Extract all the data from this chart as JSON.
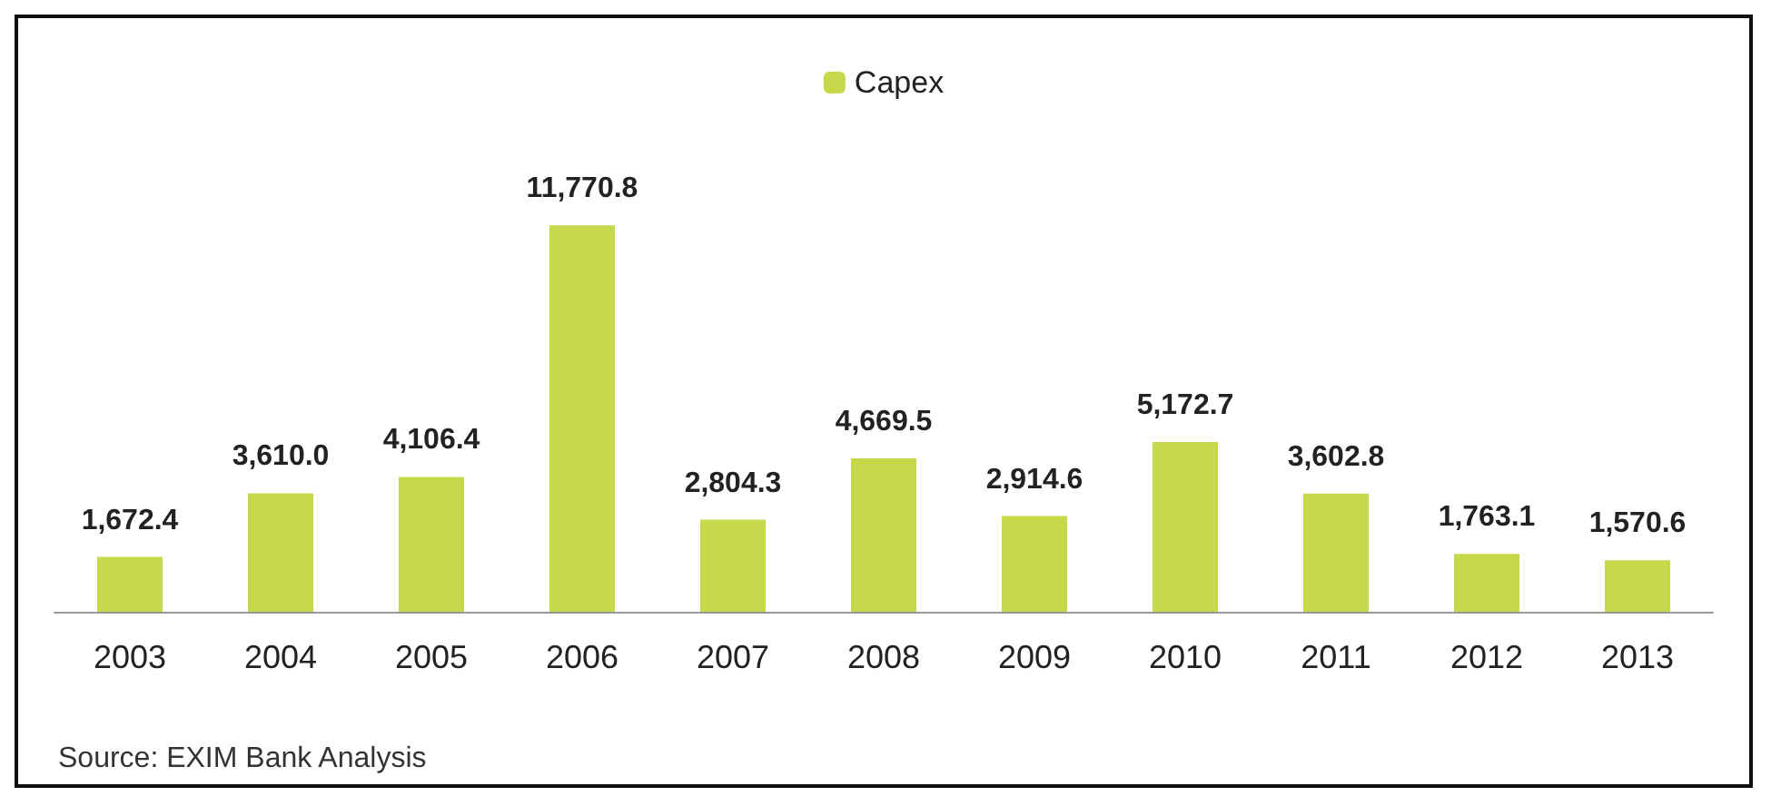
{
  "chart_data": {
    "type": "bar",
    "categories": [
      "2003",
      "2004",
      "2005",
      "2006",
      "2007",
      "2008",
      "2009",
      "2010",
      "2011",
      "2012",
      "2013"
    ],
    "series": [
      {
        "name": "Capex",
        "color": "#c5d94b",
        "values": [
          1672.4,
          3610.0,
          4106.4,
          11770.8,
          2804.3,
          4669.5,
          2914.6,
          5172.7,
          3602.8,
          1763.1,
          1570.6
        ],
        "value_labels": [
          "1,672.4",
          "3,610.0",
          "4,106.4",
          "11,770.8",
          "2,804.3",
          "4,669.5",
          "2,914.6",
          "5,172.7",
          "3,602.8",
          "1,763.1",
          "1,570.6"
        ]
      }
    ],
    "legend": "top",
    "grid": false,
    "annotations": [
      "Source: EXIM Bank Analysis"
    ]
  }
}
